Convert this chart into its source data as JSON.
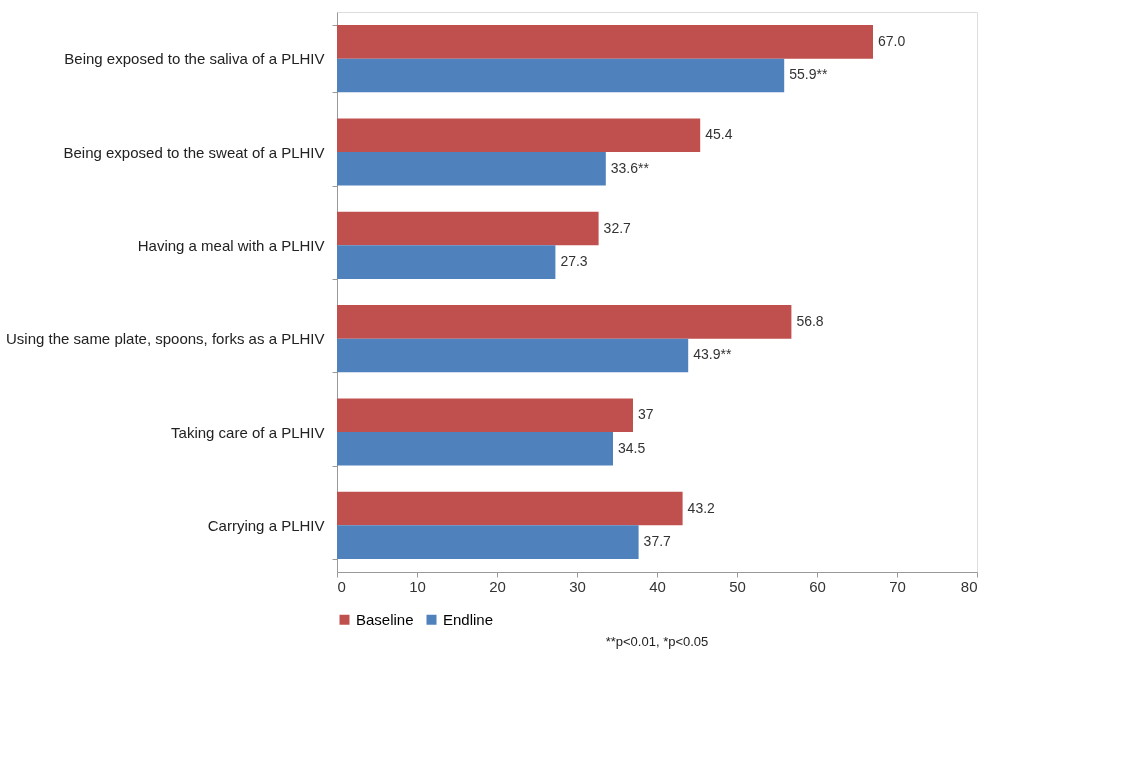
{
  "chart_data": {
    "type": "bar",
    "orientation": "horizontal",
    "categories": [
      "Being exposed to the saliva of a PLHIV",
      "Being exposed to the sweat of a PLHIV",
      "Having a meal with a PLHIV",
      "Using the same plate, spoons, forks as a PLHIV",
      "Taking care of a PLHIV",
      "Carrying a PLHIV"
    ],
    "series": [
      {
        "name": "Baseline",
        "color": "#c0504d",
        "values": [
          67.0,
          45.4,
          32.7,
          56.8,
          37,
          43.2
        ],
        "value_labels": [
          "67.0",
          "45.4",
          "32.7",
          "56.8",
          "37",
          "43.2"
        ]
      },
      {
        "name": "Endline",
        "color": "#4f81bd",
        "values": [
          55.9,
          33.6,
          27.3,
          43.9,
          34.5,
          37.7
        ],
        "value_labels": [
          "55.9**",
          "33.6**",
          "27.3",
          "43.9**",
          "34.5",
          "37.7"
        ]
      }
    ],
    "xlim": [
      0,
      80
    ],
    "xticks": [
      0,
      10,
      20,
      30,
      40,
      50,
      60,
      70,
      80
    ],
    "legend": "bottom",
    "grid": false,
    "annotations": [
      "**p<0.01, *p<0.05"
    ]
  }
}
